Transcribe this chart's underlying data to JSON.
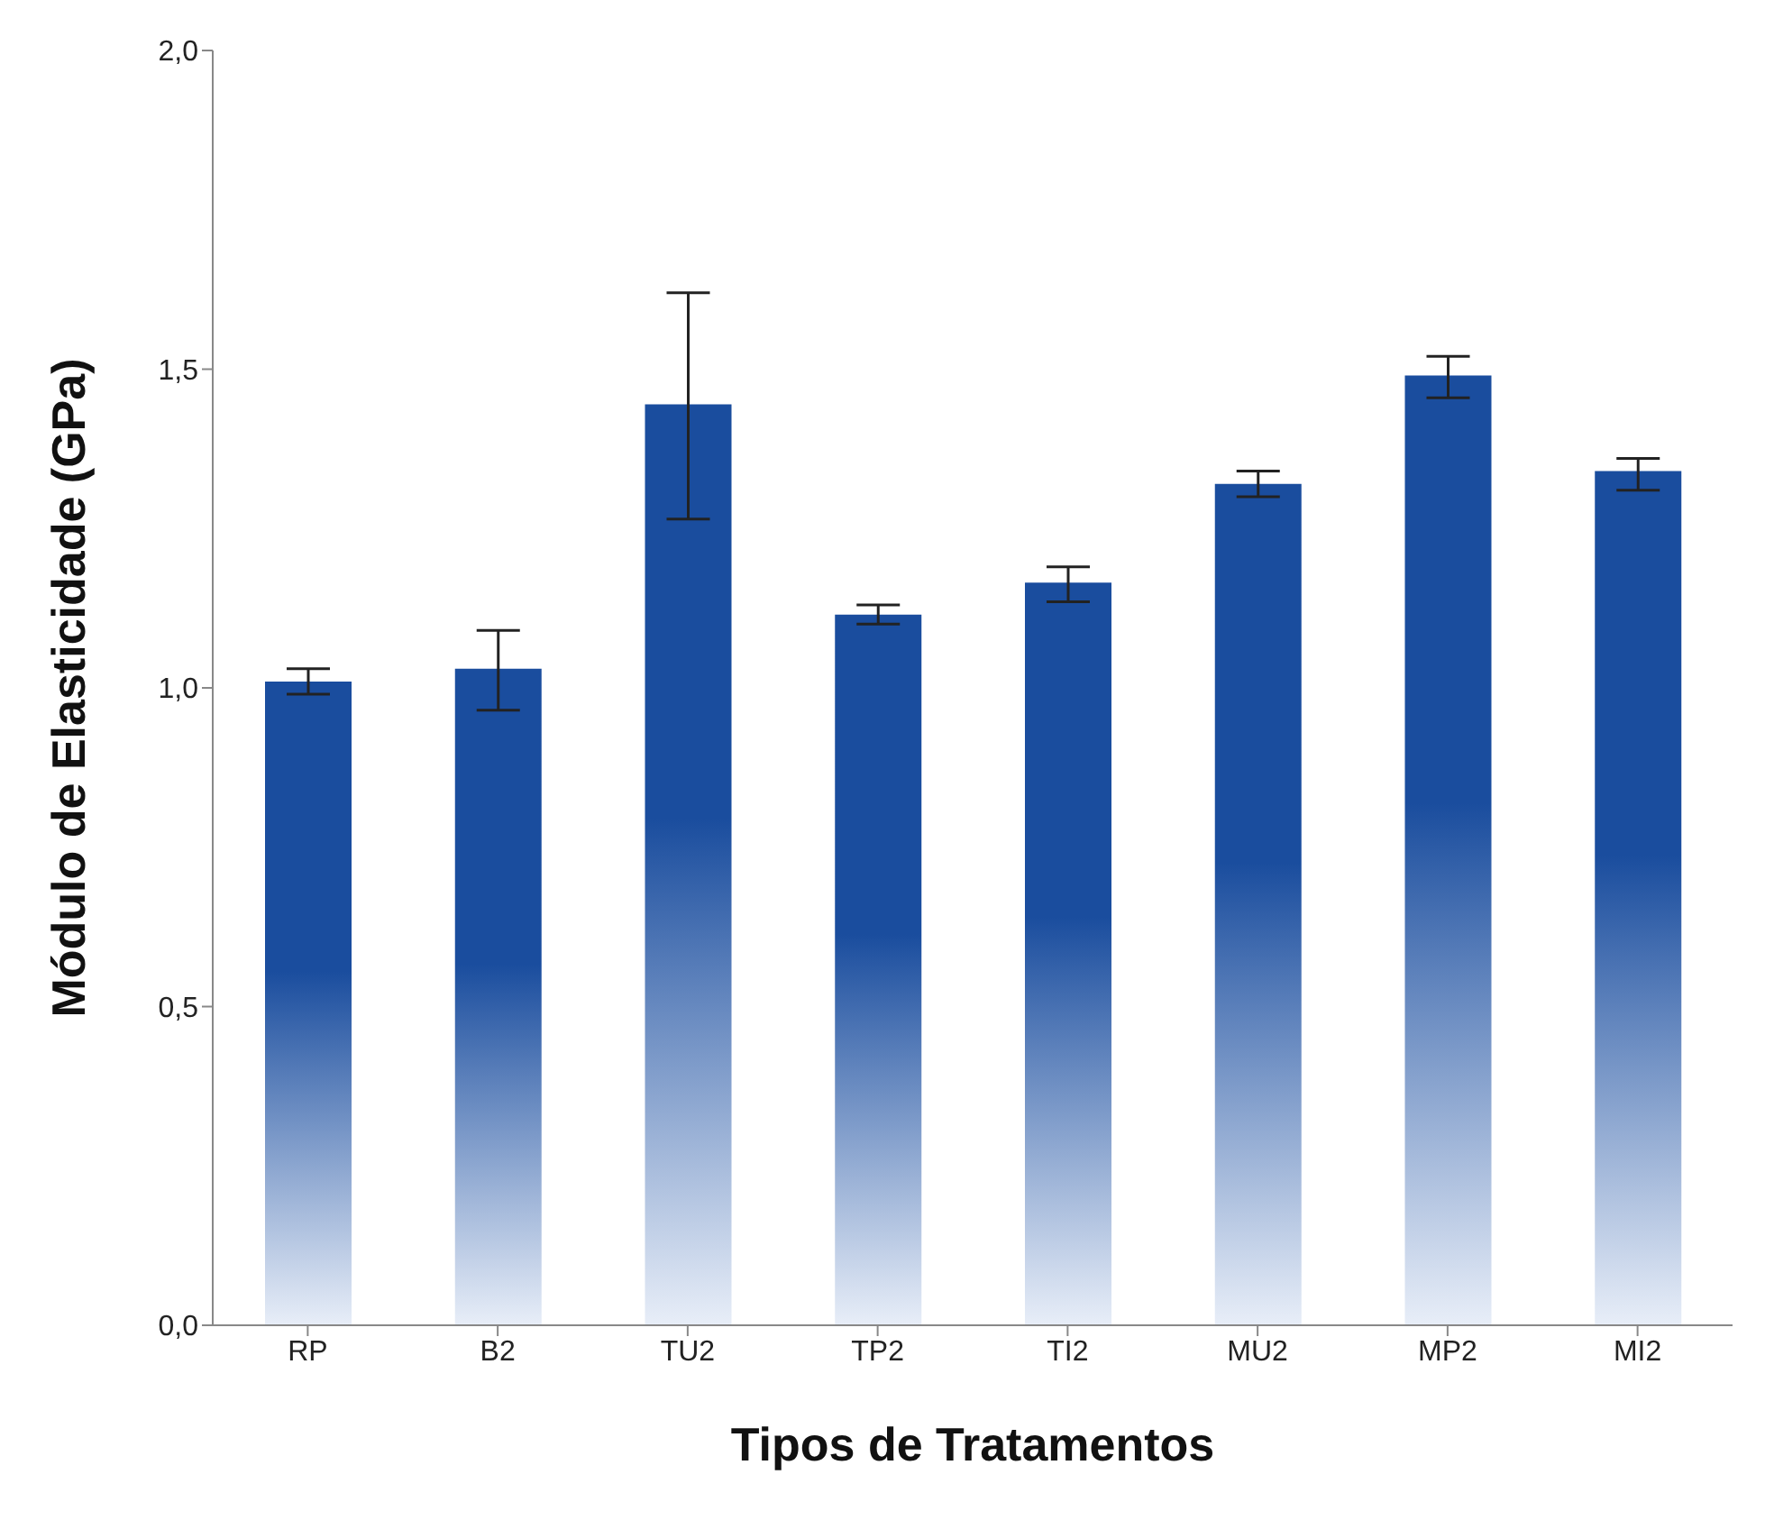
{
  "chart_data": {
    "type": "bar",
    "xlabel": "Tipos de Tratamentos",
    "ylabel": "Módulo de Elasticidade (GPa)",
    "categories": [
      "RP",
      "B2",
      "TU2",
      "TP2",
      "TI2",
      "MU2",
      "MP2",
      "MI2"
    ],
    "values": [
      1.01,
      1.03,
      1.445,
      1.115,
      1.165,
      1.32,
      1.49,
      1.34
    ],
    "errors": [
      [
        0.99,
        1.03
      ],
      [
        0.965,
        1.09
      ],
      [
        1.265,
        1.62
      ],
      [
        1.1,
        1.13
      ],
      [
        1.135,
        1.19
      ],
      [
        1.3,
        1.34
      ],
      [
        1.455,
        1.52
      ],
      [
        1.31,
        1.36
      ]
    ],
    "color": "#1a4d9e",
    "ylim": [
      0,
      2
    ],
    "yticks": [
      {
        "value": 0,
        "label": "0,0"
      },
      {
        "value": 0.5,
        "label": "0,5"
      },
      {
        "value": 1,
        "label": "1,0"
      },
      {
        "value": 1.5,
        "label": "1,5"
      },
      {
        "value": 2,
        "label": "2,0"
      }
    ]
  }
}
